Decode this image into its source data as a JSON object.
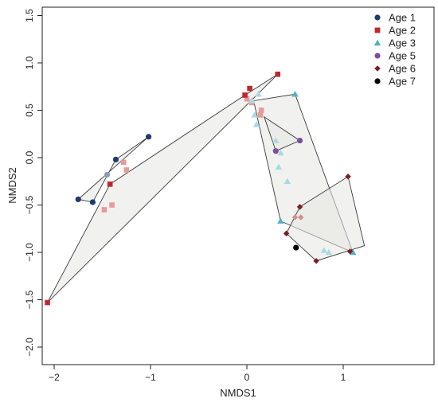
{
  "chart_data": {
    "type": "scatter",
    "xlabel": "NMDS1",
    "ylabel": "NMDS2",
    "xlim": [
      -2.2,
      1.85
    ],
    "ylim": [
      -2.2,
      1.6
    ],
    "x_ticks": [
      -2,
      -1,
      0,
      1
    ],
    "y_ticks": [
      1.5,
      1.0,
      0.5,
      0.0,
      -0.5,
      -1.0,
      -1.5,
      -2.0
    ],
    "x_tick_labels": [
      "−2",
      "−1",
      "0",
      "1"
    ],
    "y_tick_labels": [
      "1.5",
      "1.0",
      "0.5",
      "0.0",
      "−0.5",
      "−1.0",
      "−1.5",
      "−2.0"
    ],
    "grid": false,
    "legend_position": "top-right",
    "series": [
      {
        "name": "Age 1",
        "marker": "circle",
        "color": "#1f3a6e",
        "faded_color": "#8c9cc0",
        "hull": [
          [
            -1.02,
            0.22
          ],
          [
            -1.75,
            -0.44
          ],
          [
            -1.6,
            -0.47
          ],
          [
            -1.36,
            -0.02
          ],
          [
            -1.02,
            0.22
          ]
        ],
        "points": [
          {
            "x": -1.02,
            "y": 0.22,
            "faded": false
          },
          {
            "x": -1.36,
            "y": -0.02,
            "faded": false
          },
          {
            "x": -1.75,
            "y": -0.44,
            "faded": false
          },
          {
            "x": -1.6,
            "y": -0.47,
            "faded": false
          },
          {
            "x": -1.45,
            "y": -0.18,
            "faded": true
          }
        ]
      },
      {
        "name": "Age 2",
        "marker": "square",
        "color": "#c0272d",
        "faded_color": "#e69a9a",
        "hull": [
          [
            0.32,
            0.88
          ],
          [
            -2.07,
            -1.53
          ],
          [
            -1.42,
            -0.28
          ],
          [
            -0.02,
            0.66
          ],
          [
            0.32,
            0.88
          ]
        ],
        "points": [
          {
            "x": 0.32,
            "y": 0.88,
            "faded": false
          },
          {
            "x": 0.03,
            "y": 0.73,
            "faded": false
          },
          {
            "x": -0.02,
            "y": 0.66,
            "faded": false
          },
          {
            "x": -1.42,
            "y": -0.28,
            "faded": false
          },
          {
            "x": -2.07,
            "y": -1.53,
            "faded": false
          },
          {
            "x": -1.25,
            "y": -0.13,
            "faded": true
          },
          {
            "x": -1.28,
            "y": -0.05,
            "faded": true
          },
          {
            "x": -1.4,
            "y": -0.5,
            "faded": true
          },
          {
            "x": -1.48,
            "y": -0.55,
            "faded": true
          },
          {
            "x": 0.0,
            "y": 0.62,
            "faded": true
          },
          {
            "x": 0.05,
            "y": 0.58,
            "faded": true
          },
          {
            "x": 0.15,
            "y": 0.5,
            "faded": true
          },
          {
            "x": 0.14,
            "y": 0.45,
            "faded": true
          }
        ]
      },
      {
        "name": "Age 3",
        "marker": "triangle",
        "color": "#4fb5c0",
        "faded_color": "#a8dbe0",
        "hull": [
          [
            0.5,
            0.67
          ],
          [
            1.1,
            -1.0
          ],
          [
            0.35,
            -0.67
          ],
          [
            0.07,
            0.6
          ],
          [
            0.5,
            0.67
          ]
        ],
        "points": [
          {
            "x": 0.5,
            "y": 0.67,
            "faded": false
          },
          {
            "x": 0.35,
            "y": -0.67,
            "faded": false
          },
          {
            "x": 1.1,
            "y": -1.0,
            "faded": false
          },
          {
            "x": 0.12,
            "y": 0.67,
            "faded": true
          },
          {
            "x": 0.05,
            "y": 0.6,
            "faded": true
          },
          {
            "x": 0.08,
            "y": 0.45,
            "faded": true
          },
          {
            "x": 0.1,
            "y": 0.35,
            "faded": true
          },
          {
            "x": 0.3,
            "y": 0.18,
            "faded": true
          },
          {
            "x": 0.35,
            "y": 0.05,
            "faded": true
          },
          {
            "x": 0.33,
            "y": -0.1,
            "faded": true
          },
          {
            "x": 0.42,
            "y": -0.25,
            "faded": true
          },
          {
            "x": 0.8,
            "y": -0.98,
            "faded": true
          },
          {
            "x": 0.85,
            "y": -1.0,
            "faded": true
          }
        ]
      },
      {
        "name": "Age 5",
        "marker": "circle",
        "color": "#7b4fa0",
        "faded_color": "#bca4d0",
        "hull": [
          [
            0.18,
            0.43
          ],
          [
            0.55,
            0.18
          ],
          [
            0.3,
            0.07
          ],
          [
            0.18,
            0.43
          ]
        ],
        "points": [
          {
            "x": 0.55,
            "y": 0.18,
            "faded": false
          },
          {
            "x": 0.3,
            "y": 0.07,
            "faded": false
          }
        ]
      },
      {
        "name": "Age 6",
        "marker": "diamond",
        "color": "#7a1f24",
        "faded_color": "#d0908f",
        "hull": [
          [
            1.05,
            -0.2
          ],
          [
            1.22,
            -0.93
          ],
          [
            0.72,
            -1.09
          ],
          [
            0.41,
            -0.8
          ],
          [
            0.55,
            -0.52
          ],
          [
            1.05,
            -0.2
          ]
        ],
        "points": [
          {
            "x": 1.05,
            "y": -0.2,
            "faded": false
          },
          {
            "x": 0.55,
            "y": -0.52,
            "faded": false
          },
          {
            "x": 0.41,
            "y": -0.8,
            "faded": false
          },
          {
            "x": 0.72,
            "y": -1.09,
            "faded": false
          },
          {
            "x": 1.07,
            "y": -0.99,
            "faded": false
          },
          {
            "x": 0.5,
            "y": -0.63,
            "faded": true
          },
          {
            "x": 0.56,
            "y": -0.63,
            "faded": true
          }
        ]
      },
      {
        "name": "Age 7",
        "marker": "circle",
        "color": "#000000",
        "faded_color": "#888888",
        "hull": [],
        "points": [
          {
            "x": 0.51,
            "y": -0.95,
            "faded": false
          }
        ]
      }
    ]
  },
  "colors": {
    "hull_stroke": "#3a3a3a",
    "hull_fill": "#e6e6e1"
  }
}
